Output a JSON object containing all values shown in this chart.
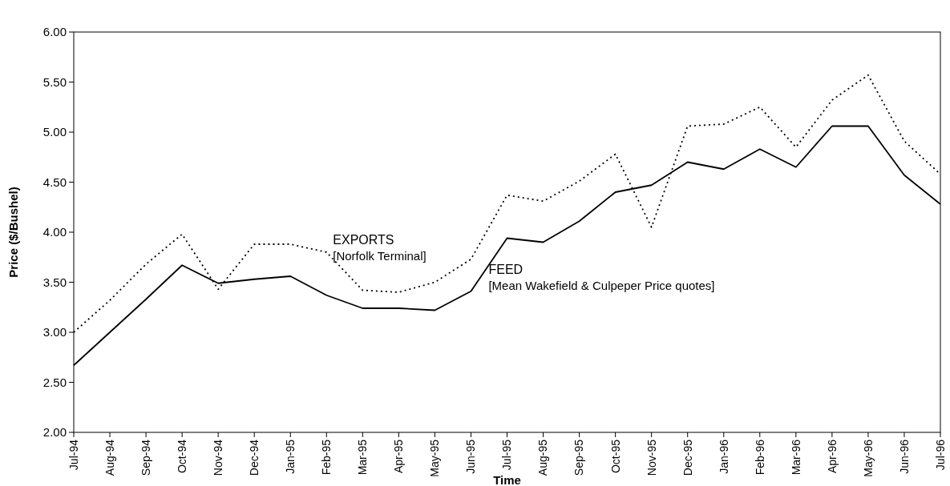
{
  "chart_data": {
    "type": "line",
    "xlabel": "Time",
    "ylabel": "Price ($/Bushel)",
    "categories": [
      "Jul-94",
      "Aug-94",
      "Sep-94",
      "Oct-94",
      "Nov-94",
      "Dec-94",
      "Jan-95",
      "Feb-95",
      "Mar-95",
      "Apr-95",
      "May-95",
      "Jun-95",
      "Jul-95",
      "Aug-95",
      "Sep-95",
      "Oct-95",
      "Nov-95",
      "Dec-95",
      "Jan-96",
      "Feb-96",
      "Mar-96",
      "Apr-96",
      "May-96",
      "Jun-96",
      "Jul-96"
    ],
    "series": [
      {
        "name": "EXPORTS",
        "color": "#000000",
        "line_style": "dotted",
        "values": [
          3.0,
          3.32,
          3.68,
          3.98,
          3.43,
          3.88,
          3.88,
          3.8,
          3.42,
          3.4,
          3.5,
          3.73,
          4.37,
          4.31,
          4.51,
          4.78,
          4.05,
          5.06,
          5.08,
          5.25,
          4.85,
          5.32,
          5.57,
          4.91,
          4.58
        ]
      },
      {
        "name": "FEED",
        "color": "#000000",
        "line_style": "solid",
        "values": [
          2.67,
          3.0,
          3.33,
          3.67,
          3.49,
          3.53,
          3.56,
          3.37,
          3.24,
          3.24,
          3.22,
          3.41,
          3.94,
          3.9,
          4.11,
          4.4,
          4.47,
          4.7,
          4.63,
          4.83,
          4.65,
          5.06,
          5.06,
          4.57,
          4.28
        ]
      }
    ],
    "annotations": [
      "[Norfolk Terminal]",
      "[Mean Wakefield & Culpeper Price quotes]"
    ],
    "ylim": [
      2,
      6
    ],
    "yticks": [
      {
        "value": 2,
        "label": "2.00"
      },
      {
        "value": 2.5,
        "label": "2.50"
      },
      {
        "value": 3,
        "label": "3.00"
      },
      {
        "value": 3.5,
        "label": "3.50"
      },
      {
        "value": 4,
        "label": "4.00"
      },
      {
        "value": 4.5,
        "label": "4.50"
      },
      {
        "value": 5,
        "label": "5.00"
      },
      {
        "value": 5.5,
        "label": "5.50"
      },
      {
        "value": 6,
        "label": "6.00"
      }
    ],
    "grid": false,
    "marker": "none"
  }
}
